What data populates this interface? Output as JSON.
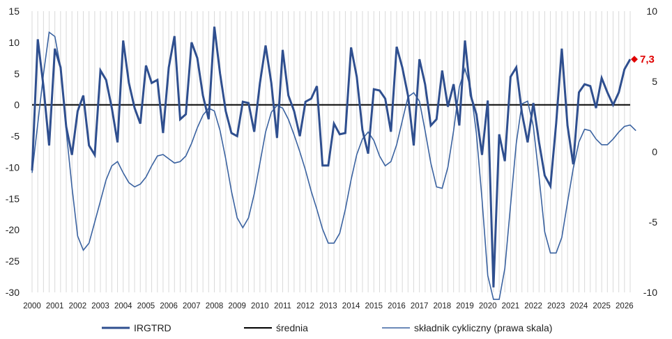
{
  "chart_data": {
    "type": "line",
    "x_start": "2000 Q1",
    "x_step": "quarter",
    "x_ticks": [
      "2000",
      "2001",
      "2002",
      "2003",
      "2004",
      "2005",
      "2006",
      "2007",
      "2008",
      "2009",
      "2010",
      "2011",
      "2012",
      "2013",
      "2014",
      "2015",
      "2016",
      "2017",
      "2018",
      "2019",
      "2020",
      "2021",
      "2022",
      "2023",
      "2024",
      "2025",
      "2026"
    ],
    "left_axis": {
      "range": [
        -30,
        15
      ],
      "ticks": [
        15,
        10,
        5,
        0,
        -5,
        -10,
        -15,
        -20,
        -25,
        -30
      ]
    },
    "right_axis": {
      "range": [
        -10,
        10
      ],
      "ticks": [
        10,
        5,
        0,
        -5,
        -10
      ]
    },
    "grid": "vertical lines at each quarter",
    "series": [
      {
        "name": "IRGTRD",
        "axis": "left",
        "color": "#2f4f8f",
        "values": [
          -10.5,
          10.5,
          3,
          -6.5,
          9,
          6,
          -3.5,
          -8,
          -1,
          1.5,
          -6.5,
          -8,
          5.5,
          4,
          -0.5,
          -6,
          10.3,
          3.5,
          -0.5,
          -3,
          6.3,
          3.5,
          4,
          -4.5,
          6,
          11,
          -2.3,
          -1.5,
          10,
          7.5,
          1.5,
          -2.3,
          12.5,
          5,
          -1,
          -4.5,
          -5,
          0.5,
          0.3,
          -4.3,
          3.5,
          9.5,
          3.5,
          -5.3,
          8.8,
          1.5,
          -1,
          -5,
          0.5,
          1,
          3,
          -9.7,
          -9.7,
          -3,
          -4.7,
          -4.5,
          9.2,
          4.5,
          -4,
          -7.8,
          2.5,
          2.3,
          1,
          -4.3,
          9.3,
          6,
          1.5,
          -6.5,
          7.3,
          3.3,
          -3.3,
          -2.3,
          5.5,
          -0.3,
          3.3,
          -3.3,
          10.3,
          1.5,
          -1.5,
          -8,
          0.7,
          -29.2,
          -4.7,
          -9,
          4.5,
          6,
          -1.3,
          -6,
          0.3,
          -6,
          -11.3,
          -13,
          -3,
          9,
          -3.3,
          -9.5,
          2,
          3.3,
          3,
          -0.5,
          4.3,
          2,
          0,
          2,
          5.7,
          7.3
        ],
        "last_label": "7,3"
      },
      {
        "name": "średnia",
        "axis": "left",
        "color": "#000000",
        "values": [
          0,
          0
        ]
      },
      {
        "name": "składnik cykliczny (prawa skala)",
        "axis": "right",
        "color": "#3a62a0",
        "values": [
          -1.5,
          2,
          5.5,
          8.5,
          8.2,
          6,
          1.5,
          -2.5,
          -6,
          -7,
          -6.5,
          -5,
          -3.5,
          -2,
          -1,
          -0.7,
          -1.5,
          -2.2,
          -2.5,
          -2.3,
          -1.8,
          -1,
          -0.3,
          -0.2,
          -0.5,
          -0.8,
          -0.7,
          -0.3,
          0.6,
          1.7,
          2.6,
          3.1,
          2.9,
          1.5,
          -0.5,
          -2.8,
          -4.7,
          -5.4,
          -4.7,
          -3,
          -0.8,
          1.4,
          2.8,
          3.3,
          3.1,
          2.3,
          1.2,
          0,
          -1.3,
          -2.8,
          -4.1,
          -5.5,
          -6.5,
          -6.5,
          -5.8,
          -4.1,
          -2,
          -0.2,
          0.9,
          1.4,
          0.8,
          -0.3,
          -1,
          -0.7,
          0.5,
          2.2,
          3.9,
          4.2,
          3.6,
          1.5,
          -0.8,
          -2.5,
          -2.6,
          -1.1,
          1.5,
          4.6,
          5.9,
          4.5,
          1.3,
          -3.4,
          -8.8,
          -10.5,
          -10.5,
          -8.3,
          -3.8,
          0.6,
          3.4,
          3.6,
          1.8,
          -1.8,
          -5.7,
          -7.2,
          -7.2,
          -6.1,
          -3.6,
          -1.2,
          0.7,
          1.6,
          1.5,
          0.9,
          0.5,
          0.5,
          0.9,
          1.4,
          1.8,
          1.9,
          1.5
        ]
      }
    ],
    "legend": {
      "position": "bottom",
      "entries": [
        "IRGTRD",
        "średnia",
        "składnik cykliczny (prawa skala)"
      ]
    },
    "annotation": {
      "text": "7,3",
      "color": "#e00000"
    }
  }
}
